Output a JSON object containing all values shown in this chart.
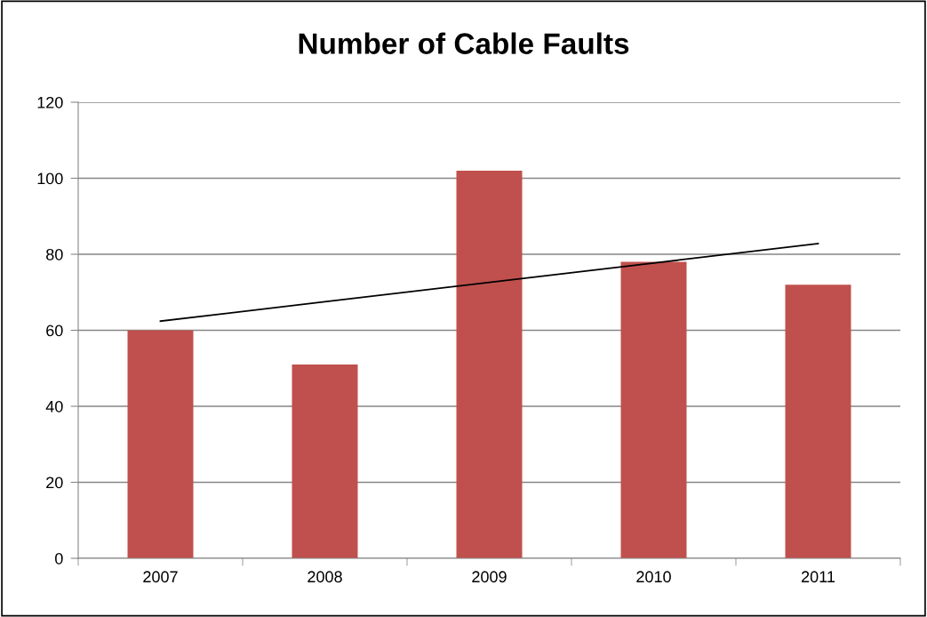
{
  "chart_data": {
    "type": "bar",
    "title": "Number of Cable Faults",
    "categories": [
      "2007",
      "2008",
      "2009",
      "2010",
      "2011"
    ],
    "series": [
      {
        "color": "#c0504d",
        "values": [
          60,
          51,
          102,
          78,
          72
        ]
      },
      {
        "type": "line",
        "color": "#000000",
        "values": [
          62.4,
          67.5,
          72.6,
          77.7,
          82.8
        ]
      }
    ],
    "ylim": [
      0,
      120
    ],
    "yticks": [
      0,
      20,
      40,
      60,
      80,
      100,
      120
    ],
    "grid": "y",
    "legend": false
  }
}
